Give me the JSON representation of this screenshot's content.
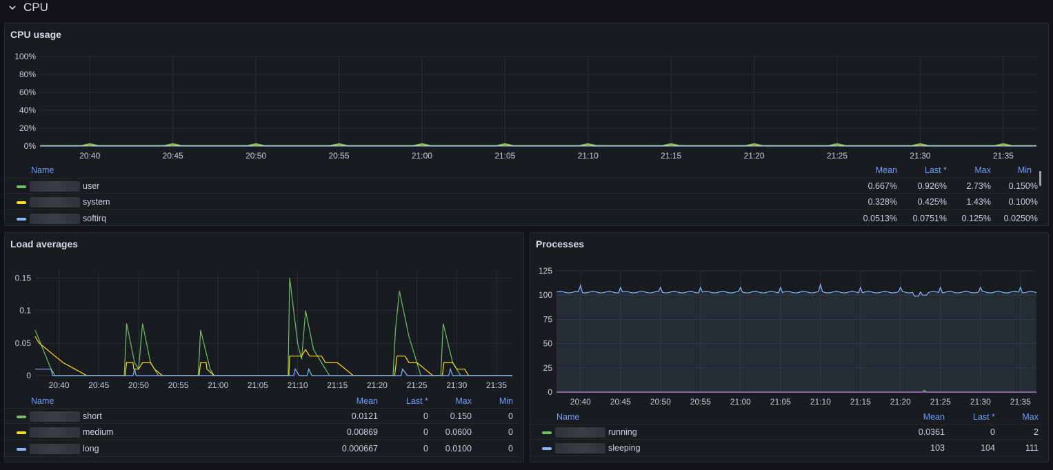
{
  "row": {
    "title": "CPU",
    "icon": "chevron-down-icon"
  },
  "colors": {
    "user": "#73bf69",
    "system": "#fade2a",
    "softirq": "#8ab8ff",
    "accent": "#6e9fff",
    "sleeping_fill": "#8ab8ff"
  },
  "cpu_panel": {
    "title": "CPU usage",
    "legend_headers": [
      "Name",
      "Mean",
      "Last *",
      "Max",
      "Min"
    ],
    "legend_rows": [
      {
        "name": "user",
        "mean": "0.667%",
        "last": "0.926%",
        "max": "2.73%",
        "min": "0.150%"
      },
      {
        "name": "system",
        "mean": "0.328%",
        "last": "0.425%",
        "max": "1.43%",
        "min": "0.100%"
      },
      {
        "name": "softirq",
        "mean": "0.0513%",
        "last": "0.0751%",
        "max": "0.125%",
        "min": "0.0250%"
      }
    ]
  },
  "load_panel": {
    "title": "Load averages",
    "legend_headers": [
      "Name",
      "Mean",
      "Last *",
      "Max",
      "Min"
    ],
    "legend_rows": [
      {
        "name": "short",
        "mean": "0.0121",
        "last": "0",
        "max": "0.150",
        "min": "0"
      },
      {
        "name": "medium",
        "mean": "0.00869",
        "last": "0",
        "max": "0.0600",
        "min": "0"
      },
      {
        "name": "long",
        "mean": "0.000667",
        "last": "0",
        "max": "0.0100",
        "min": "0"
      }
    ]
  },
  "proc_panel": {
    "title": "Processes",
    "legend_headers": [
      "Name",
      "Mean",
      "Last *",
      "Max"
    ],
    "legend_rows": [
      {
        "name": "running",
        "mean": "0.0361",
        "last": "0",
        "max": "2"
      },
      {
        "name": "sleeping",
        "mean": "103",
        "last": "104",
        "max": "111"
      }
    ]
  },
  "chart_data": [
    {
      "type": "line",
      "title": "CPU usage",
      "x_ticks": [
        "20:40",
        "20:45",
        "20:50",
        "20:55",
        "21:00",
        "21:05",
        "21:10",
        "21:15",
        "21:20",
        "21:25",
        "21:30",
        "21:35"
      ],
      "y_ticks": [
        "0%",
        "20%",
        "40%",
        "60%",
        "80%",
        "100%"
      ],
      "ylim": [
        0,
        100
      ],
      "x_range_minutes": [
        0,
        60
      ],
      "series": [
        {
          "name": "user",
          "values_pct_typical": 0.667,
          "max": 2.73
        },
        {
          "name": "system",
          "values_pct_typical": 0.328,
          "max": 1.43
        },
        {
          "name": "softirq",
          "values_pct_typical": 0.0513,
          "max": 0.125
        }
      ]
    },
    {
      "type": "line",
      "title": "Load averages",
      "x_ticks": [
        "20:40",
        "20:45",
        "20:50",
        "20:55",
        "21:00",
        "21:05",
        "21:10",
        "21:15",
        "21:20",
        "21:25",
        "21:30",
        "21:35"
      ],
      "y_ticks": [
        "0",
        "0.05",
        "0.1",
        "0.15"
      ],
      "ylim": [
        0,
        0.16
      ],
      "x_range_minutes": [
        0,
        60
      ],
      "series": [
        {
          "name": "short",
          "points": [
            [
              0,
              0.07
            ],
            [
              1,
              0.04
            ],
            [
              2,
              0.01
            ],
            [
              2.5,
              0
            ],
            [
              11.2,
              0
            ],
            [
              11.5,
              0.08
            ],
            [
              12.5,
              0.02
            ],
            [
              13,
              0.01
            ],
            [
              13.5,
              0.08
            ],
            [
              14.5,
              0.02
            ],
            [
              15.5,
              0
            ],
            [
              20.5,
              0
            ],
            [
              20.8,
              0.07
            ],
            [
              22,
              0.01
            ],
            [
              22.5,
              0
            ],
            [
              31.8,
              0
            ],
            [
              32,
              0.15
            ],
            [
              33,
              0.05
            ],
            [
              33.5,
              0.025
            ],
            [
              34,
              0.1
            ],
            [
              35,
              0.04
            ],
            [
              36,
              0.02
            ],
            [
              37,
              0
            ],
            [
              45,
              0
            ],
            [
              45.3,
              0.07
            ],
            [
              45.8,
              0.13
            ],
            [
              47,
              0.06
            ],
            [
              48,
              0.02
            ],
            [
              48.5,
              0
            ],
            [
              51,
              0
            ],
            [
              51.3,
              0.08
            ],
            [
              52.5,
              0.02
            ],
            [
              53.5,
              0
            ],
            [
              60,
              0
            ]
          ]
        },
        {
          "name": "medium",
          "points": [
            [
              0,
              0.06
            ],
            [
              0.5,
              0.05
            ],
            [
              1.5,
              0.04
            ],
            [
              2.5,
              0.03
            ],
            [
              3.5,
              0.02
            ],
            [
              5,
              0.01
            ],
            [
              6.5,
              0
            ],
            [
              11.3,
              0
            ],
            [
              11.5,
              0.02
            ],
            [
              12.3,
              0.02
            ],
            [
              12.4,
              0.01
            ],
            [
              13,
              0.01
            ],
            [
              13.5,
              0.02
            ],
            [
              14.5,
              0.02
            ],
            [
              15,
              0.01
            ],
            [
              16,
              0
            ],
            [
              20.6,
              0
            ],
            [
              20.8,
              0.02
            ],
            [
              21.5,
              0.02
            ],
            [
              21.6,
              0.01
            ],
            [
              22.5,
              0
            ],
            [
              31.9,
              0
            ],
            [
              32,
              0.03
            ],
            [
              33.5,
              0.03
            ],
            [
              34,
              0.04
            ],
            [
              34.5,
              0.03
            ],
            [
              36,
              0.03
            ],
            [
              36.5,
              0.02
            ],
            [
              38,
              0.02
            ],
            [
              39,
              0.01
            ],
            [
              40,
              0
            ],
            [
              45.2,
              0
            ],
            [
              45.5,
              0.03
            ],
            [
              46.5,
              0.03
            ],
            [
              47,
              0.02
            ],
            [
              48,
              0.02
            ],
            [
              49,
              0.01
            ],
            [
              50,
              0
            ],
            [
              51.2,
              0
            ],
            [
              51.4,
              0.02
            ],
            [
              52.5,
              0.02
            ],
            [
              53,
              0.01
            ],
            [
              54,
              0.01
            ],
            [
              54.5,
              0
            ],
            [
              60,
              0
            ]
          ]
        },
        {
          "name": "long",
          "points": [
            [
              0,
              0.01
            ],
            [
              2,
              0.01
            ],
            [
              2.2,
              0
            ],
            [
              12.3,
              0
            ],
            [
              12.5,
              0.01
            ],
            [
              12.7,
              0
            ],
            [
              32.5,
              0
            ],
            [
              32.7,
              0.01
            ],
            [
              33.2,
              0
            ],
            [
              34.2,
              0
            ],
            [
              34.4,
              0.01
            ],
            [
              34.8,
              0
            ],
            [
              46,
              0
            ],
            [
              46.2,
              0.01
            ],
            [
              46.8,
              0
            ],
            [
              52,
              0
            ],
            [
              52.2,
              0.01
            ],
            [
              52.5,
              0
            ],
            [
              60,
              0
            ]
          ]
        }
      ]
    },
    {
      "type": "area",
      "title": "Processes",
      "x_ticks": [
        "20:40",
        "20:45",
        "20:50",
        "20:55",
        "21:00",
        "21:05",
        "21:10",
        "21:15",
        "21:20",
        "21:25",
        "21:30",
        "21:35"
      ],
      "y_ticks": [
        "0",
        "25",
        "50",
        "75",
        "100",
        "125"
      ],
      "ylim": [
        0,
        125
      ],
      "x_range_minutes": [
        0,
        60
      ],
      "series": [
        {
          "name": "sleeping",
          "baseline": 103,
          "spikes": [
            [
              3,
              110
            ],
            [
              8,
              108
            ],
            [
              13,
              108
            ],
            [
              18,
              108
            ],
            [
              23,
              108
            ],
            [
              28,
              108
            ],
            [
              33,
              111
            ],
            [
              38,
              108
            ],
            [
              43,
              108
            ],
            [
              48,
              108
            ],
            [
              53,
              108
            ],
            [
              58,
              108
            ]
          ],
          "dip_around": [
            [
              45,
              99
            ],
            [
              46,
              100
            ]
          ]
        },
        {
          "name": "running",
          "baseline": 0,
          "spikes": [
            [
              46,
              2
            ]
          ]
        }
      ]
    }
  ]
}
